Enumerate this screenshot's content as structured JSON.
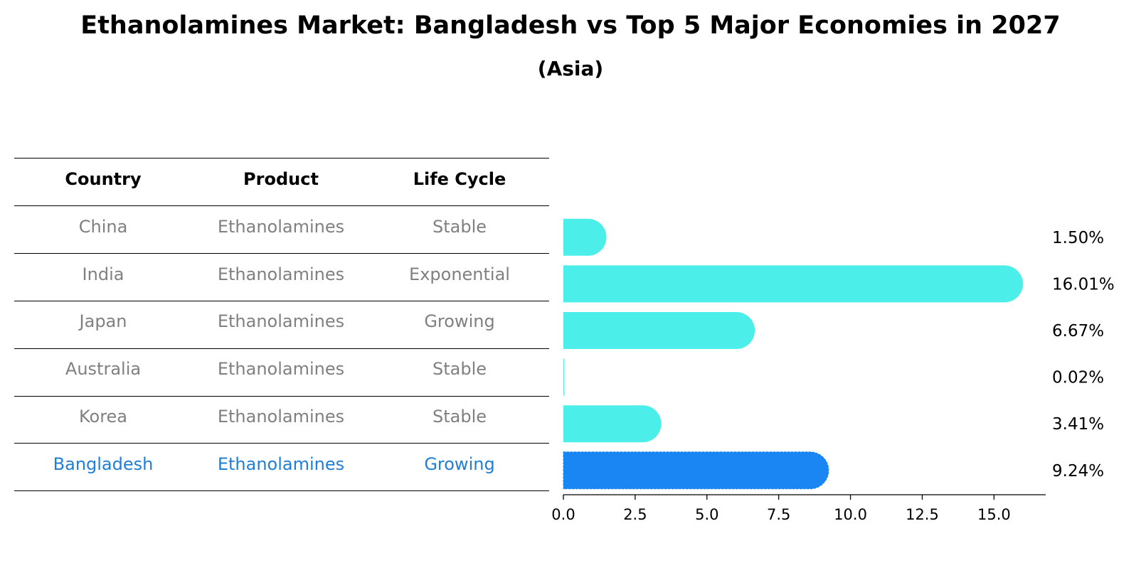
{
  "title": "Ethanolamines Market: Bangladesh vs Top 5 Major Economies in 2027",
  "subtitle": "(Asia)",
  "table": {
    "headers": [
      "Country",
      "Product",
      "Life Cycle"
    ],
    "rows": [
      {
        "country": "China",
        "product": "Ethanolamines",
        "life_cycle": "Stable"
      },
      {
        "country": "India",
        "product": "Ethanolamines",
        "life_cycle": "Exponential"
      },
      {
        "country": "Japan",
        "product": "Ethanolamines",
        "life_cycle": "Growing"
      },
      {
        "country": "Australia",
        "product": "Ethanolamines",
        "life_cycle": "Stable"
      },
      {
        "country": "Korea",
        "product": "Ethanolamines",
        "life_cycle": "Stable"
      },
      {
        "country": "Bangladesh",
        "product": "Ethanolamines",
        "life_cycle": "Growing"
      }
    ],
    "highlight_row": "Bangladesh"
  },
  "colors": {
    "bar": "#4beee9",
    "highlight": "#1a86f3",
    "highlight_text": "#1f7fd6",
    "muted_text": "#808080"
  },
  "chart_data": {
    "type": "bar",
    "orientation": "horizontal",
    "categories": [
      "China",
      "India",
      "Japan",
      "Australia",
      "Korea",
      "Bangladesh"
    ],
    "values": [
      1.5,
      16.01,
      6.67,
      0.02,
      3.41,
      9.24
    ],
    "value_labels": [
      "1.50%",
      "16.01%",
      "6.67%",
      "0.02%",
      "3.41%",
      "9.24%"
    ],
    "highlight": "Bangladesh",
    "xlim": [
      0,
      16.8
    ],
    "xticks": [
      0.0,
      2.5,
      5.0,
      7.5,
      10.0,
      12.5,
      15.0
    ],
    "xtick_labels": [
      "0.0",
      "2.5",
      "5.0",
      "7.5",
      "10.0",
      "12.5",
      "15.0"
    ],
    "xlabel": "",
    "ylabel": "",
    "grid": false
  }
}
